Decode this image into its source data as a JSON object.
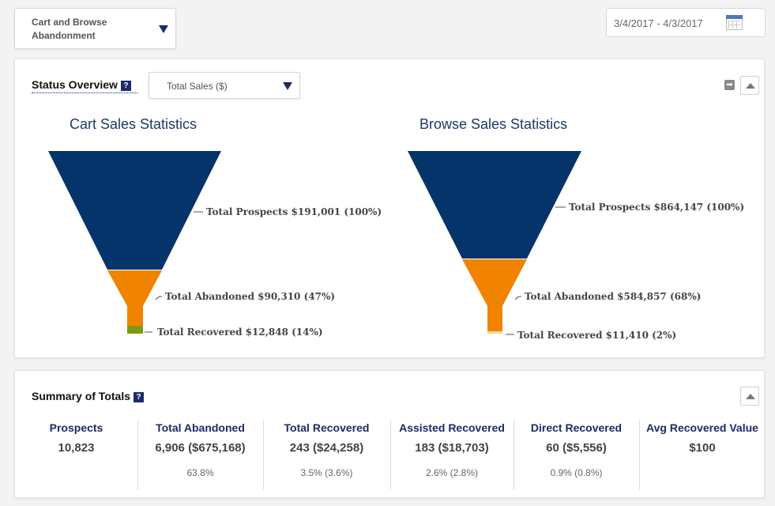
{
  "filter": {
    "selected": "Cart and Browse Abandonment"
  },
  "date_range": {
    "value": "3/4/2017 - 4/3/2017"
  },
  "status": {
    "title": "Status Overview",
    "help": "?",
    "metric": "Total Sales ($)",
    "arrow_glyph": "➡",
    "cart": {
      "title": "Cart Sales Statistics",
      "prospects": "Total Prospects $191,001 (100%)",
      "abandoned": "Total Abandoned $90,310 (47%)",
      "recovered": "Total Recovered $12,848 (14%)"
    },
    "browse": {
      "title": "Browse Sales Statistics",
      "prospects": "Total Prospects $864,147 (100%)",
      "abandoned": "Total Abandoned $584,857 (68%)",
      "recovered": "Total Recovered $11,410 (2%)"
    }
  },
  "summary": {
    "title": "Summary of Totals",
    "help": "?",
    "columns": [
      {
        "label": "Prospects",
        "value": "10,823",
        "percent": ""
      },
      {
        "label": "Total Abandoned",
        "value": "6,906  ($675,168)",
        "percent": "63.8%"
      },
      {
        "label": "Total Recovered",
        "value": "243  ($24,258)",
        "percent": "3.5%  (3.6%)"
      },
      {
        "label": "Assisted Recovered",
        "value": "183  ($18,703)",
        "percent": "2.6%  (2.8%)"
      },
      {
        "label": "Direct Recovered",
        "value": "60  ($5,556)",
        "percent": "0.9%  (0.8%)"
      },
      {
        "label": "Avg Recovered Value",
        "value": "$100",
        "percent": ""
      }
    ]
  },
  "colors": {
    "navy": "#04346a",
    "orange": "#f08300",
    "green": "#7a9a13",
    "accent": "#1c2a6b"
  },
  "icons": [
    "dropdown-arrow-icon",
    "calendar-icon",
    "help-icon",
    "arrow-right-icon",
    "collapse-up-icon"
  ]
}
